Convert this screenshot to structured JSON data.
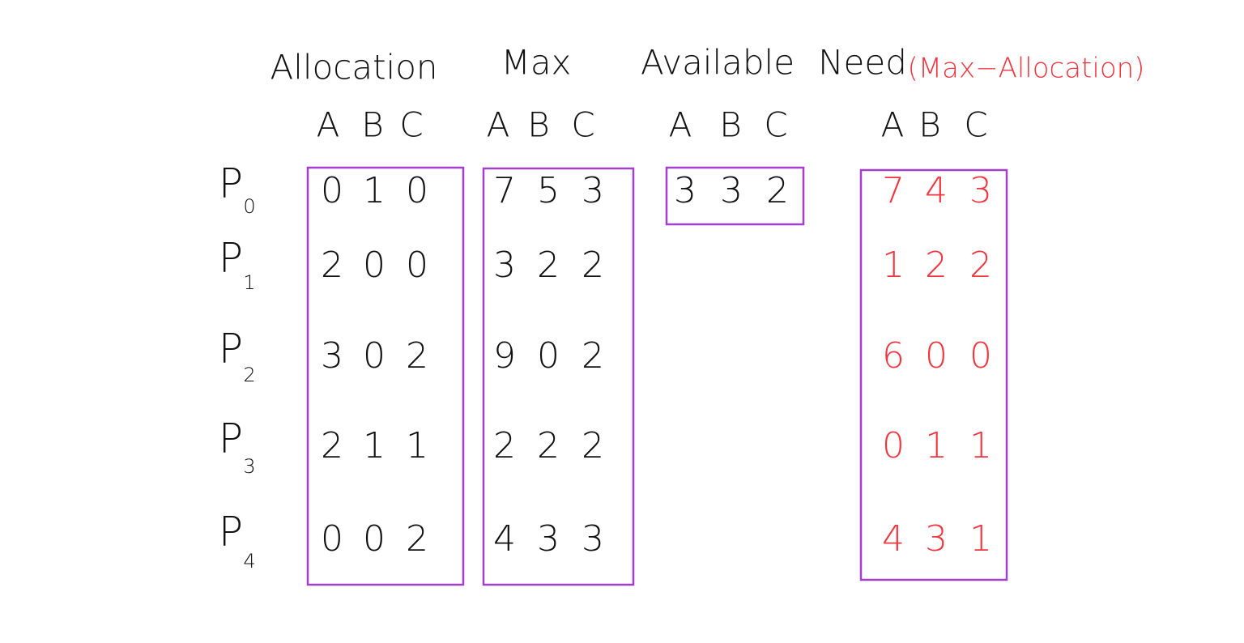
{
  "headers": {
    "allocation": "Allocation",
    "max": "Max",
    "available": "Available",
    "need": "Need",
    "need_note": "(Max−Allocation)"
  },
  "resources": [
    "A",
    "B",
    "C"
  ],
  "processes": [
    {
      "name": "P",
      "index": "0"
    },
    {
      "name": "P",
      "index": "1"
    },
    {
      "name": "P",
      "index": "2"
    },
    {
      "name": "P",
      "index": "3"
    },
    {
      "name": "P",
      "index": "4"
    }
  ],
  "allocation": [
    [
      0,
      1,
      0
    ],
    [
      2,
      0,
      0
    ],
    [
      3,
      0,
      2
    ],
    [
      2,
      1,
      1
    ],
    [
      0,
      0,
      2
    ]
  ],
  "max": [
    [
      7,
      5,
      3
    ],
    [
      3,
      2,
      2
    ],
    [
      9,
      0,
      2
    ],
    [
      2,
      2,
      2
    ],
    [
      4,
      3,
      3
    ]
  ],
  "available": [
    3,
    3,
    2
  ],
  "need": [
    [
      7,
      4,
      3
    ],
    [
      1,
      2,
      2
    ],
    [
      6,
      0,
      0
    ],
    [
      0,
      1,
      1
    ],
    [
      4,
      3,
      1
    ]
  ]
}
